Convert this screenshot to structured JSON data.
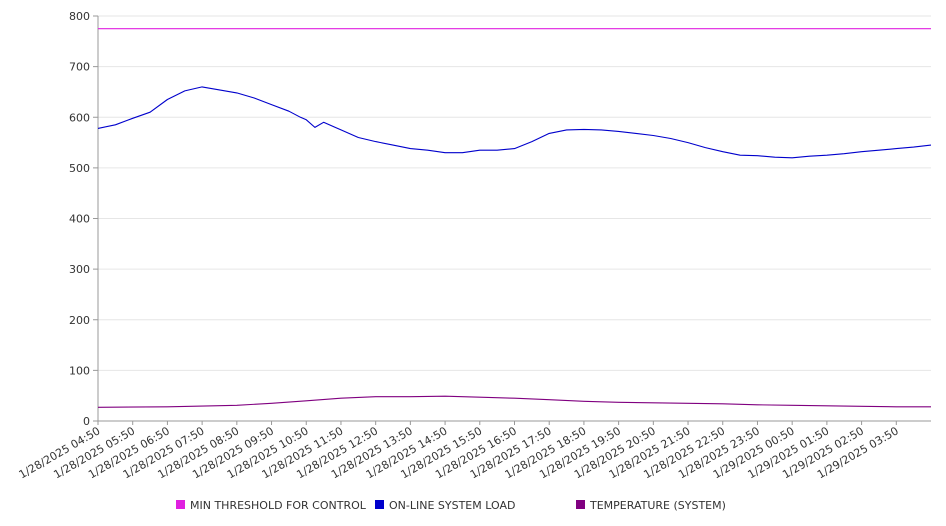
{
  "chart_data": {
    "type": "line",
    "title": "",
    "xlabel": "",
    "ylabel": "",
    "ylim": [
      0,
      800
    ],
    "yticks": [
      0,
      100,
      200,
      300,
      400,
      500,
      600,
      700,
      800
    ],
    "grid": true,
    "legend_position": "bottom",
    "x_tick_labels": [
      "1/28/2025 04:50",
      "1/28/2025 05:50",
      "1/28/2025 06:50",
      "1/28/2025 07:50",
      "1/28/2025 08:50",
      "1/28/2025 09:50",
      "1/28/2025 10:50",
      "1/28/2025 11:50",
      "1/28/2025 12:50",
      "1/28/2025 13:50",
      "1/28/2025 14:50",
      "1/28/2025 15:50",
      "1/28/2025 16:50",
      "1/28/2025 17:50",
      "1/28/2025 18:50",
      "1/28/2025 19:50",
      "1/28/2025 20:50",
      "1/28/2025 21:50",
      "1/28/2025 22:50",
      "1/28/2025 23:50",
      "1/29/2025 00:50",
      "1/29/2025 01:50",
      "1/29/2025 02:50",
      "1/29/2025 03:50"
    ],
    "x_start": "1/28/2025 04:50",
    "x_end": "1/29/2025 04:50",
    "series": [
      {
        "name": "MIN THRESHOLD FOR CONTROL",
        "color": "#e020e0",
        "x": [
          "1/28/2025 04:50",
          "1/29/2025 04:50"
        ],
        "values": [
          775,
          775
        ]
      },
      {
        "name": "ON-LINE SYSTEM LOAD",
        "color": "#0000cc",
        "x": [
          "1/28/2025 04:50",
          "1/28/2025 05:20",
          "1/28/2025 05:50",
          "1/28/2025 06:20",
          "1/28/2025 06:50",
          "1/28/2025 07:20",
          "1/28/2025 07:50",
          "1/28/2025 08:20",
          "1/28/2025 08:50",
          "1/28/2025 09:20",
          "1/28/2025 09:50",
          "1/28/2025 10:20",
          "1/28/2025 10:40",
          "1/28/2025 10:50",
          "1/28/2025 11:05",
          "1/28/2025 11:20",
          "1/28/2025 11:50",
          "1/28/2025 12:20",
          "1/28/2025 12:50",
          "1/28/2025 13:20",
          "1/28/2025 13:50",
          "1/28/2025 14:20",
          "1/28/2025 14:50",
          "1/28/2025 15:20",
          "1/28/2025 15:50",
          "1/28/2025 16:20",
          "1/28/2025 16:50",
          "1/28/2025 17:20",
          "1/28/2025 17:50",
          "1/28/2025 18:20",
          "1/28/2025 18:50",
          "1/28/2025 19:20",
          "1/28/2025 19:50",
          "1/28/2025 20:20",
          "1/28/2025 20:50",
          "1/28/2025 21:20",
          "1/28/2025 21:50",
          "1/28/2025 22:20",
          "1/28/2025 22:50",
          "1/28/2025 23:20",
          "1/28/2025 23:50",
          "1/29/2025 00:20",
          "1/29/2025 00:50",
          "1/29/2025 01:20",
          "1/29/2025 01:50",
          "1/29/2025 02:20",
          "1/29/2025 02:50",
          "1/29/2025 03:20",
          "1/29/2025 03:50",
          "1/29/2025 04:20",
          "1/29/2025 04:50"
        ],
        "values": [
          578,
          585,
          598,
          610,
          635,
          652,
          660,
          654,
          648,
          638,
          625,
          612,
          600,
          595,
          580,
          590,
          575,
          560,
          552,
          545,
          538,
          535,
          530,
          530,
          535,
          535,
          538,
          552,
          568,
          575,
          576,
          575,
          572,
          568,
          564,
          558,
          550,
          540,
          532,
          525,
          524,
          521,
          520,
          523,
          525,
          528,
          532,
          535,
          538,
          541,
          545
        ]
      },
      {
        "name": "TEMPERATURE (SYSTEM)",
        "color": "#800080",
        "x": [
          "1/28/2025 04:50",
          "1/28/2025 06:50",
          "1/28/2025 08:50",
          "1/28/2025 09:50",
          "1/28/2025 10:50",
          "1/28/2025 11:50",
          "1/28/2025 12:50",
          "1/28/2025 13:50",
          "1/28/2025 14:50",
          "1/28/2025 15:50",
          "1/28/2025 16:50",
          "1/28/2025 17:50",
          "1/28/2025 18:50",
          "1/28/2025 19:50",
          "1/28/2025 20:50",
          "1/28/2025 21:50",
          "1/28/2025 22:50",
          "1/28/2025 23:50",
          "1/29/2025 00:50",
          "1/29/2025 01:50",
          "1/29/2025 02:50",
          "1/29/2025 03:50",
          "1/29/2025 04:50"
        ],
        "values": [
          27,
          28,
          31,
          35,
          40,
          45,
          48,
          48,
          49,
          47,
          45,
          42,
          39,
          37,
          36,
          35,
          34,
          32,
          31,
          30,
          29,
          28,
          28
        ]
      }
    ]
  }
}
